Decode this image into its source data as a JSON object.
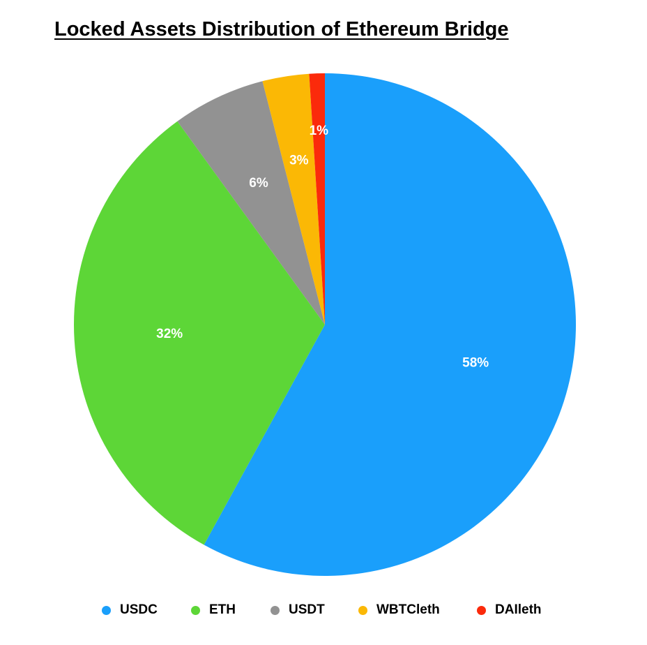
{
  "chart_data": {
    "type": "pie",
    "title": "Locked Assets Distribution of Ethereum Bridge",
    "categories": [
      "USDC",
      "ETH",
      "USDT",
      "WBTCleth",
      "DAIleth"
    ],
    "values": [
      58,
      32,
      6,
      3,
      1
    ],
    "labels": [
      "58%",
      "32%",
      "6%",
      "3%",
      "1%"
    ],
    "colors": [
      "#1a9ffb",
      "#5dd637",
      "#929292",
      "#fbb805",
      "#fb2a0b"
    ],
    "legend_position": "bottom"
  }
}
